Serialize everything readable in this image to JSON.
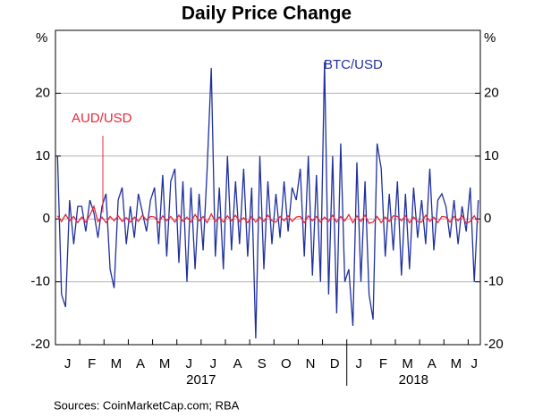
{
  "chart_data": {
    "type": "line",
    "title": "Daily Price Change",
    "y_unit": "%",
    "categories": [
      "J",
      null,
      null,
      null,
      null,
      null,
      "F",
      null,
      null,
      null,
      null,
      null,
      "M",
      null,
      null,
      null,
      null,
      null,
      "A",
      null,
      null,
      null,
      null,
      null,
      "M",
      null,
      null,
      null,
      null,
      null,
      "J",
      null,
      null,
      null,
      null,
      null,
      "J",
      null,
      null,
      null,
      null,
      null,
      "A",
      null,
      null,
      null,
      null,
      null,
      "S",
      null,
      null,
      null,
      null,
      null,
      "O",
      null,
      null,
      null,
      null,
      null,
      "N",
      null,
      null,
      null,
      null,
      null,
      "D",
      null,
      null,
      null,
      null,
      null,
      "J",
      null,
      null,
      null,
      null,
      null,
      "F",
      null,
      null,
      null,
      null,
      null,
      "M",
      null,
      null,
      null,
      null,
      null,
      "A",
      null,
      null,
      null,
      null,
      null,
      "M",
      null,
      null,
      null,
      null,
      null,
      "J",
      null,
      null
    ],
    "series": [
      {
        "name": "BTC/USD",
        "color": "#1f2f9e",
        "values": [
          10,
          -12,
          -14,
          3,
          -4,
          2,
          2,
          -2,
          3,
          1,
          -3,
          2,
          4,
          -8,
          -11,
          3,
          5,
          -4,
          2,
          -3,
          4,
          1,
          -2,
          3,
          5,
          -4,
          7,
          -6,
          6,
          8,
          -7,
          6,
          -10,
          5,
          -8,
          4,
          -5,
          8,
          24,
          -6,
          5,
          -8,
          10,
          -5,
          6,
          -4,
          8,
          -6,
          5,
          -19,
          10,
          -8,
          6,
          -4,
          4,
          -3,
          6,
          -2,
          5,
          3,
          8,
          -6,
          10,
          -9,
          7,
          -10,
          25,
          -12,
          10,
          -15,
          12,
          -10,
          -8,
          -17,
          9,
          -10,
          6,
          -12,
          -16,
          12,
          8,
          -6,
          4,
          -5,
          6,
          -9,
          4,
          -8,
          5,
          -3,
          3,
          -4,
          8,
          -5,
          3,
          4,
          2,
          -3,
          3,
          -4,
          2,
          -2,
          5,
          -10,
          3
        ]
      },
      {
        "name": "AUD/USD",
        "color": "#e8283c",
        "values": [
          0.5,
          -0.4,
          0.7,
          -0.3,
          0.4,
          -0.6,
          0.3,
          -0.5,
          0.6,
          2,
          -0.4,
          0.3,
          -0.6,
          0.4,
          -0.3,
          0.5,
          -0.4,
          0.2,
          -0.5,
          0.3,
          -0.4,
          0.6,
          -0.2,
          0.4,
          0.3,
          -0.6,
          0.5,
          -0.3,
          0.4,
          -0.5,
          0.6,
          -0.4,
          0.3,
          -0.5,
          0.7,
          -0.3,
          0.4,
          -0.6,
          0.8,
          -0.4,
          0.3,
          -0.5,
          0.5,
          -0.3,
          0.6,
          -0.4,
          0.2,
          -0.6,
          0.4,
          -0.5,
          0.3,
          -0.4,
          0.6,
          -0.3,
          -0.5,
          0.4,
          -0.3,
          0.5,
          -0.4,
          0.3,
          0.4,
          -0.6,
          0.5,
          -0.3,
          0.4,
          -0.5,
          0.3,
          -0.4,
          0.6,
          -0.5,
          0.4,
          -0.3,
          0.7,
          -0.6,
          0.5,
          -0.4,
          0.6,
          -0.7,
          -0.5,
          0.4,
          -0.6,
          0.3,
          -0.4,
          0.5,
          0.4,
          -0.3,
          0.5,
          -0.6,
          0.3,
          -0.4,
          -0.5,
          0.6,
          -0.4,
          0.3,
          -0.6,
          0.4,
          0.3,
          -0.5,
          0.4,
          -0.3,
          0.5,
          -0.7,
          -0.4,
          0.5,
          -0.6
        ]
      }
    ],
    "ylim": [
      -20,
      30
    ],
    "yticks": [
      -20,
      -10,
      0,
      10,
      20
    ],
    "grid": true,
    "year_labels": [
      "2017",
      "2018"
    ],
    "source": "Sources:   CoinMarketCap.com; RBA"
  }
}
